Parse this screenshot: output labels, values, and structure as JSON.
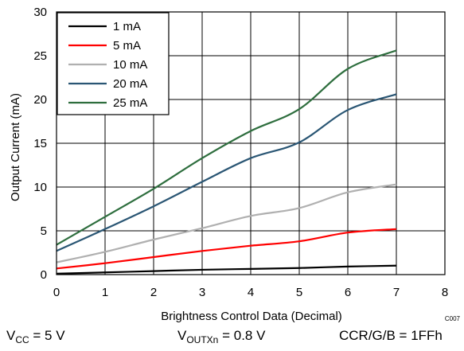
{
  "chart_data": {
    "type": "line",
    "xlabel": "Brightness Control Data (Decimal)",
    "ylabel": "Output Current (mA)",
    "xlim": [
      0,
      8
    ],
    "ylim": [
      0,
      30
    ],
    "x_ticks": [
      "0",
      "1",
      "2",
      "3",
      "4",
      "5",
      "6",
      "7",
      "8"
    ],
    "y_ticks": [
      "0",
      "5",
      "10",
      "15",
      "20",
      "25",
      "30"
    ],
    "grid": true,
    "legend_position": "top-left",
    "figure_code": "C007",
    "x": [
      0,
      1,
      2,
      3,
      4,
      5,
      6,
      7
    ],
    "series": [
      {
        "name": "1 mA",
        "color": "#000000",
        "values": [
          0.1,
          0.25,
          0.4,
          0.55,
          0.65,
          0.75,
          0.92,
          1.02
        ]
      },
      {
        "name": "5 mA",
        "color": "#ff0000",
        "values": [
          0.7,
          1.3,
          2.0,
          2.7,
          3.3,
          3.8,
          4.8,
          5.2
        ]
      },
      {
        "name": "10 mA",
        "color": "#b0b0b0",
        "values": [
          1.4,
          2.6,
          4.0,
          5.3,
          6.7,
          7.6,
          9.4,
          10.3
        ]
      },
      {
        "name": "20 mA",
        "color": "#2a5674",
        "values": [
          2.7,
          5.2,
          7.8,
          10.6,
          13.3,
          15.1,
          18.8,
          20.6
        ]
      },
      {
        "name": "25 mA",
        "color": "#2e6e3e",
        "values": [
          3.4,
          6.6,
          9.8,
          13.3,
          16.4,
          18.9,
          23.5,
          25.6
        ]
      }
    ]
  },
  "conditions": {
    "vcc_main": "V",
    "vcc_sub": "CC",
    "vcc_rest": " = 5 V",
    "vout_main": "V",
    "vout_sub": "OUTXn",
    "vout_rest": " = 0.8 V",
    "ccr": "CCR/G/B = 1FFh"
  }
}
